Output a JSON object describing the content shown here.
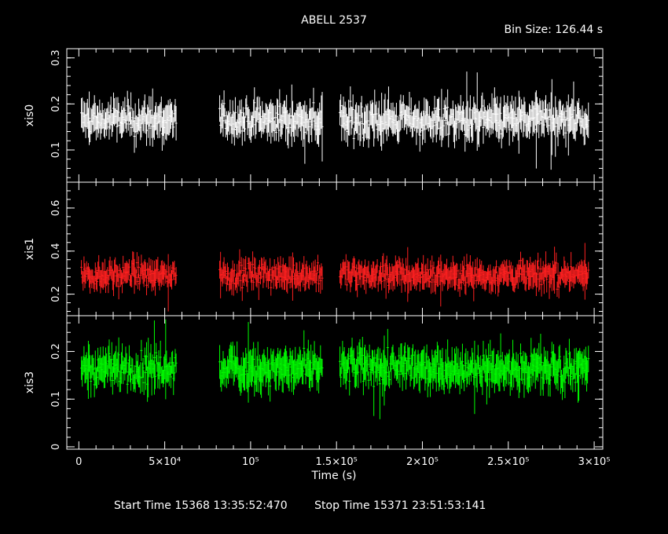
{
  "header": {
    "title": "ABELL 2537",
    "bin_size": "Bin Size: 126.44 s"
  },
  "footer": {
    "start_time": "Start Time 15368 13:35:52:470",
    "stop_time": "Stop Time 15371 23:51:53:141"
  },
  "colors": {
    "axes": "#ffffff",
    "xis0": "#ffffff",
    "xis1": "#ff2020",
    "xis3": "#00ff00"
  },
  "chart_data": {
    "type": "scatter",
    "xlabel": "Time (s)",
    "xlim": [
      -7000,
      305000
    ],
    "x_ticks": [
      {
        "value": 0,
        "label": "0"
      },
      {
        "value": 50000,
        "label": "5×10⁴"
      },
      {
        "value": 100000,
        "label": "10⁵"
      },
      {
        "value": 150000,
        "label": "1.5×10⁵"
      },
      {
        "value": 200000,
        "label": "2×10⁵"
      },
      {
        "value": 250000,
        "label": "2.5×10⁵"
      },
      {
        "value": 300000,
        "label": "3×10⁵"
      }
    ],
    "segments": [
      [
        1500,
        57000
      ],
      [
        82000,
        142000
      ],
      [
        152000,
        297000
      ]
    ],
    "bin_size_s": 126.44,
    "panels": [
      {
        "name": "xis0",
        "ylabel": "xis0",
        "color": "#ffffff",
        "ylim": [
          0.03,
          0.32
        ],
        "y_ticks": [
          {
            "value": 0.1,
            "label": "0.1"
          },
          {
            "value": 0.2,
            "label": "0.2"
          },
          {
            "value": 0.3,
            "label": "0.3"
          }
        ],
        "mean": 0.165,
        "scatter": 0.022,
        "err": 0.028
      },
      {
        "name": "xis1",
        "ylabel": "xis1",
        "color": "#ff2020",
        "ylim": [
          0.1,
          0.72
        ],
        "y_ticks": [
          {
            "value": 0.2,
            "label": "0.2"
          },
          {
            "value": 0.4,
            "label": "0.4"
          },
          {
            "value": 0.6,
            "label": "0.6"
          }
        ],
        "mean": 0.29,
        "scatter": 0.035,
        "err": 0.045
      },
      {
        "name": "xis3",
        "ylabel": "xis3",
        "color": "#00ff00",
        "ylim": [
          -0.005,
          0.275
        ],
        "y_ticks": [
          {
            "value": 0,
            "label": "0"
          },
          {
            "value": 0.1,
            "label": "0.1"
          },
          {
            "value": 0.2,
            "label": "0.2"
          }
        ],
        "mean": 0.165,
        "scatter": 0.022,
        "err": 0.028
      }
    ]
  }
}
